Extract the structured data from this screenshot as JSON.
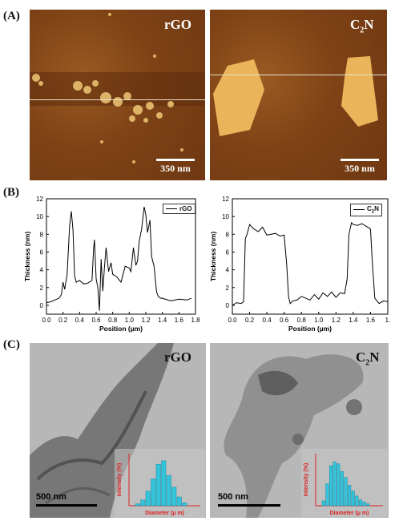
{
  "panels": {
    "a": {
      "label": "(A)",
      "left": {
        "title": "rGO",
        "scale": "350 nm"
      },
      "right": {
        "title": "C2N",
        "title_main": "C",
        "title_sub": "2",
        "title_end": "N",
        "scale": "350 nm"
      }
    },
    "b": {
      "label": "(B)"
    },
    "c": {
      "label": "(C)",
      "left": {
        "title": "rGO",
        "scale": "500 nm"
      },
      "right": {
        "title": "C2N",
        "title_main": "C",
        "title_sub": "2",
        "title_end": "N",
        "scale": "500 nm"
      },
      "inset": {
        "ylabel": "Intensity (%)",
        "xlabel": "Diameter (µ m)"
      }
    }
  },
  "chart_data": [
    {
      "type": "line",
      "legend": "rGO",
      "xlabel": "Position (µm)",
      "ylabel": "Thickness (nm)",
      "xlim": [
        0.0,
        1.8
      ],
      "ylim": [
        -1,
        12
      ],
      "xticks": [
        "0.0",
        "0.2",
        "0.4",
        "0.6",
        "0.8",
        "1.0",
        "1.2",
        "1.4",
        "1.6",
        "1.8"
      ],
      "yticks": [
        "0",
        "2",
        "4",
        "6",
        "8",
        "10",
        "12"
      ],
      "x": [
        0.0,
        0.05,
        0.1,
        0.15,
        0.18,
        0.2,
        0.22,
        0.25,
        0.28,
        0.3,
        0.32,
        0.34,
        0.36,
        0.4,
        0.45,
        0.5,
        0.55,
        0.57,
        0.58,
        0.6,
        0.62,
        0.64,
        0.66,
        0.68,
        0.7,
        0.72,
        0.75,
        0.78,
        0.8,
        0.85,
        0.9,
        0.95,
        1.0,
        1.02,
        1.05,
        1.08,
        1.1,
        1.12,
        1.15,
        1.18,
        1.2,
        1.22,
        1.25,
        1.27,
        1.3,
        1.33,
        1.35,
        1.38,
        1.4,
        1.5,
        1.6,
        1.7,
        1.75
      ],
      "y": [
        0.3,
        0.4,
        0.6,
        0.8,
        1.2,
        2.6,
        1.8,
        3.5,
        9.0,
        10.6,
        8.5,
        3.3,
        2.6,
        2.8,
        2.4,
        2.5,
        2.8,
        6.5,
        7.4,
        3.0,
        2.0,
        -0.6,
        5.2,
        1.6,
        4.2,
        6.5,
        3.8,
        4.8,
        3.5,
        3.2,
        2.6,
        4.4,
        4.2,
        3.8,
        6.5,
        4.5,
        5.0,
        7.2,
        8.6,
        11.1,
        10.2,
        8.2,
        9.6,
        5.5,
        4.4,
        1.5,
        1.0,
        0.8,
        0.8,
        0.5,
        0.7,
        0.6,
        0.8
      ]
    },
    {
      "type": "line",
      "legend": "C2N",
      "xlabel": "Position (µm)",
      "ylabel": "Thickness (nm)",
      "xlim": [
        0.0,
        1.8
      ],
      "ylim": [
        -1,
        12
      ],
      "xticks": [
        "0.0",
        "0.2",
        "0.4",
        "0.6",
        "0.8",
        "1.0",
        "1.2",
        "1.4",
        "1.6",
        "1."
      ],
      "yticks": [
        "0",
        "2",
        "4",
        "6",
        "8",
        "10",
        "12"
      ],
      "x": [
        0.0,
        0.05,
        0.1,
        0.13,
        0.15,
        0.17,
        0.2,
        0.25,
        0.3,
        0.35,
        0.4,
        0.45,
        0.5,
        0.55,
        0.6,
        0.63,
        0.65,
        0.67,
        0.7,
        0.75,
        0.8,
        0.85,
        0.9,
        0.95,
        1.0,
        1.05,
        1.1,
        1.15,
        1.2,
        1.25,
        1.3,
        1.33,
        1.35,
        1.38,
        1.4,
        1.45,
        1.5,
        1.55,
        1.6,
        1.62,
        1.65,
        1.7,
        1.75,
        1.8
      ],
      "y": [
        0.0,
        0.3,
        0.2,
        0.4,
        7.5,
        8.0,
        9.1,
        8.6,
        8.3,
        8.8,
        7.9,
        8.0,
        8.1,
        7.8,
        7.9,
        4.5,
        1.0,
        0.2,
        0.5,
        0.6,
        1.0,
        0.8,
        0.6,
        1.2,
        0.7,
        1.4,
        1.0,
        1.5,
        0.9,
        1.4,
        1.3,
        3.0,
        8.0,
        9.3,
        9.1,
        9.0,
        9.2,
        8.9,
        8.6,
        5.0,
        0.8,
        0.2,
        0.5,
        0.4
      ]
    },
    {
      "type": "bar",
      "name": "rGO diameter distribution",
      "xlabel": "Diameter (µ m)",
      "ylabel": "Intensity (%)",
      "values": [
        4,
        12,
        30,
        55,
        85,
        92,
        62,
        38,
        18,
        6
      ]
    },
    {
      "type": "bar",
      "name": "C2N diameter distribution",
      "xlabel": "Diameter (µ m)",
      "ylabel": "Intensity (%)",
      "values": [
        10,
        45,
        82,
        90,
        86,
        70,
        58,
        42,
        30,
        20,
        12,
        8,
        4
      ]
    }
  ]
}
